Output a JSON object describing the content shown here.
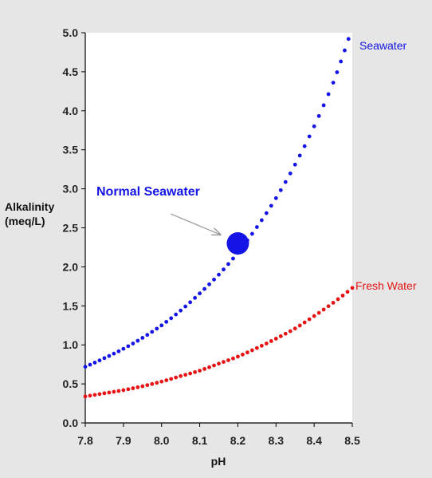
{
  "chart_data": {
    "type": "scatter",
    "xlabel": "pH",
    "ylabel_lines": [
      "Alkalinity",
      "(meq/L)"
    ],
    "xlim": [
      7.8,
      8.5
    ],
    "ylim": [
      0.0,
      5.0
    ],
    "x_ticks": [
      "7.8",
      "7.9",
      "8.0",
      "8.1",
      "8.2",
      "8.3",
      "8.4",
      "8.5"
    ],
    "y_ticks": [
      "0.0",
      "0.5",
      "1.0",
      "1.5",
      "2.0",
      "2.5",
      "3.0",
      "3.5",
      "4.0",
      "4.5",
      "5.0"
    ],
    "grid": false,
    "series": [
      {
        "name": "Seawater",
        "color": "#1414e6",
        "x": [
          7.8,
          7.85,
          7.9,
          7.95,
          8.0,
          8.05,
          8.1,
          8.15,
          8.2,
          8.25,
          8.3,
          8.35,
          8.4,
          8.45,
          8.49
        ],
        "y": [
          0.72,
          0.83,
          0.95,
          1.09,
          1.25,
          1.44,
          1.66,
          1.9,
          2.18,
          2.51,
          2.88,
          3.31,
          3.8,
          4.36,
          4.92
        ]
      },
      {
        "name": "Fresh Water",
        "color": "#e61414",
        "x": [
          7.8,
          7.85,
          7.9,
          7.95,
          8.0,
          8.05,
          8.1,
          8.15,
          8.2,
          8.25,
          8.3,
          8.35,
          8.4,
          8.45,
          8.5
        ],
        "y": [
          0.34,
          0.38,
          0.42,
          0.47,
          0.53,
          0.6,
          0.67,
          0.76,
          0.85,
          0.96,
          1.08,
          1.21,
          1.37,
          1.54,
          1.73
        ]
      }
    ],
    "annotation": {
      "text": "Normal Seawater",
      "color": "#1414e6",
      "point": {
        "x": 8.2,
        "y": 2.3
      }
    }
  }
}
